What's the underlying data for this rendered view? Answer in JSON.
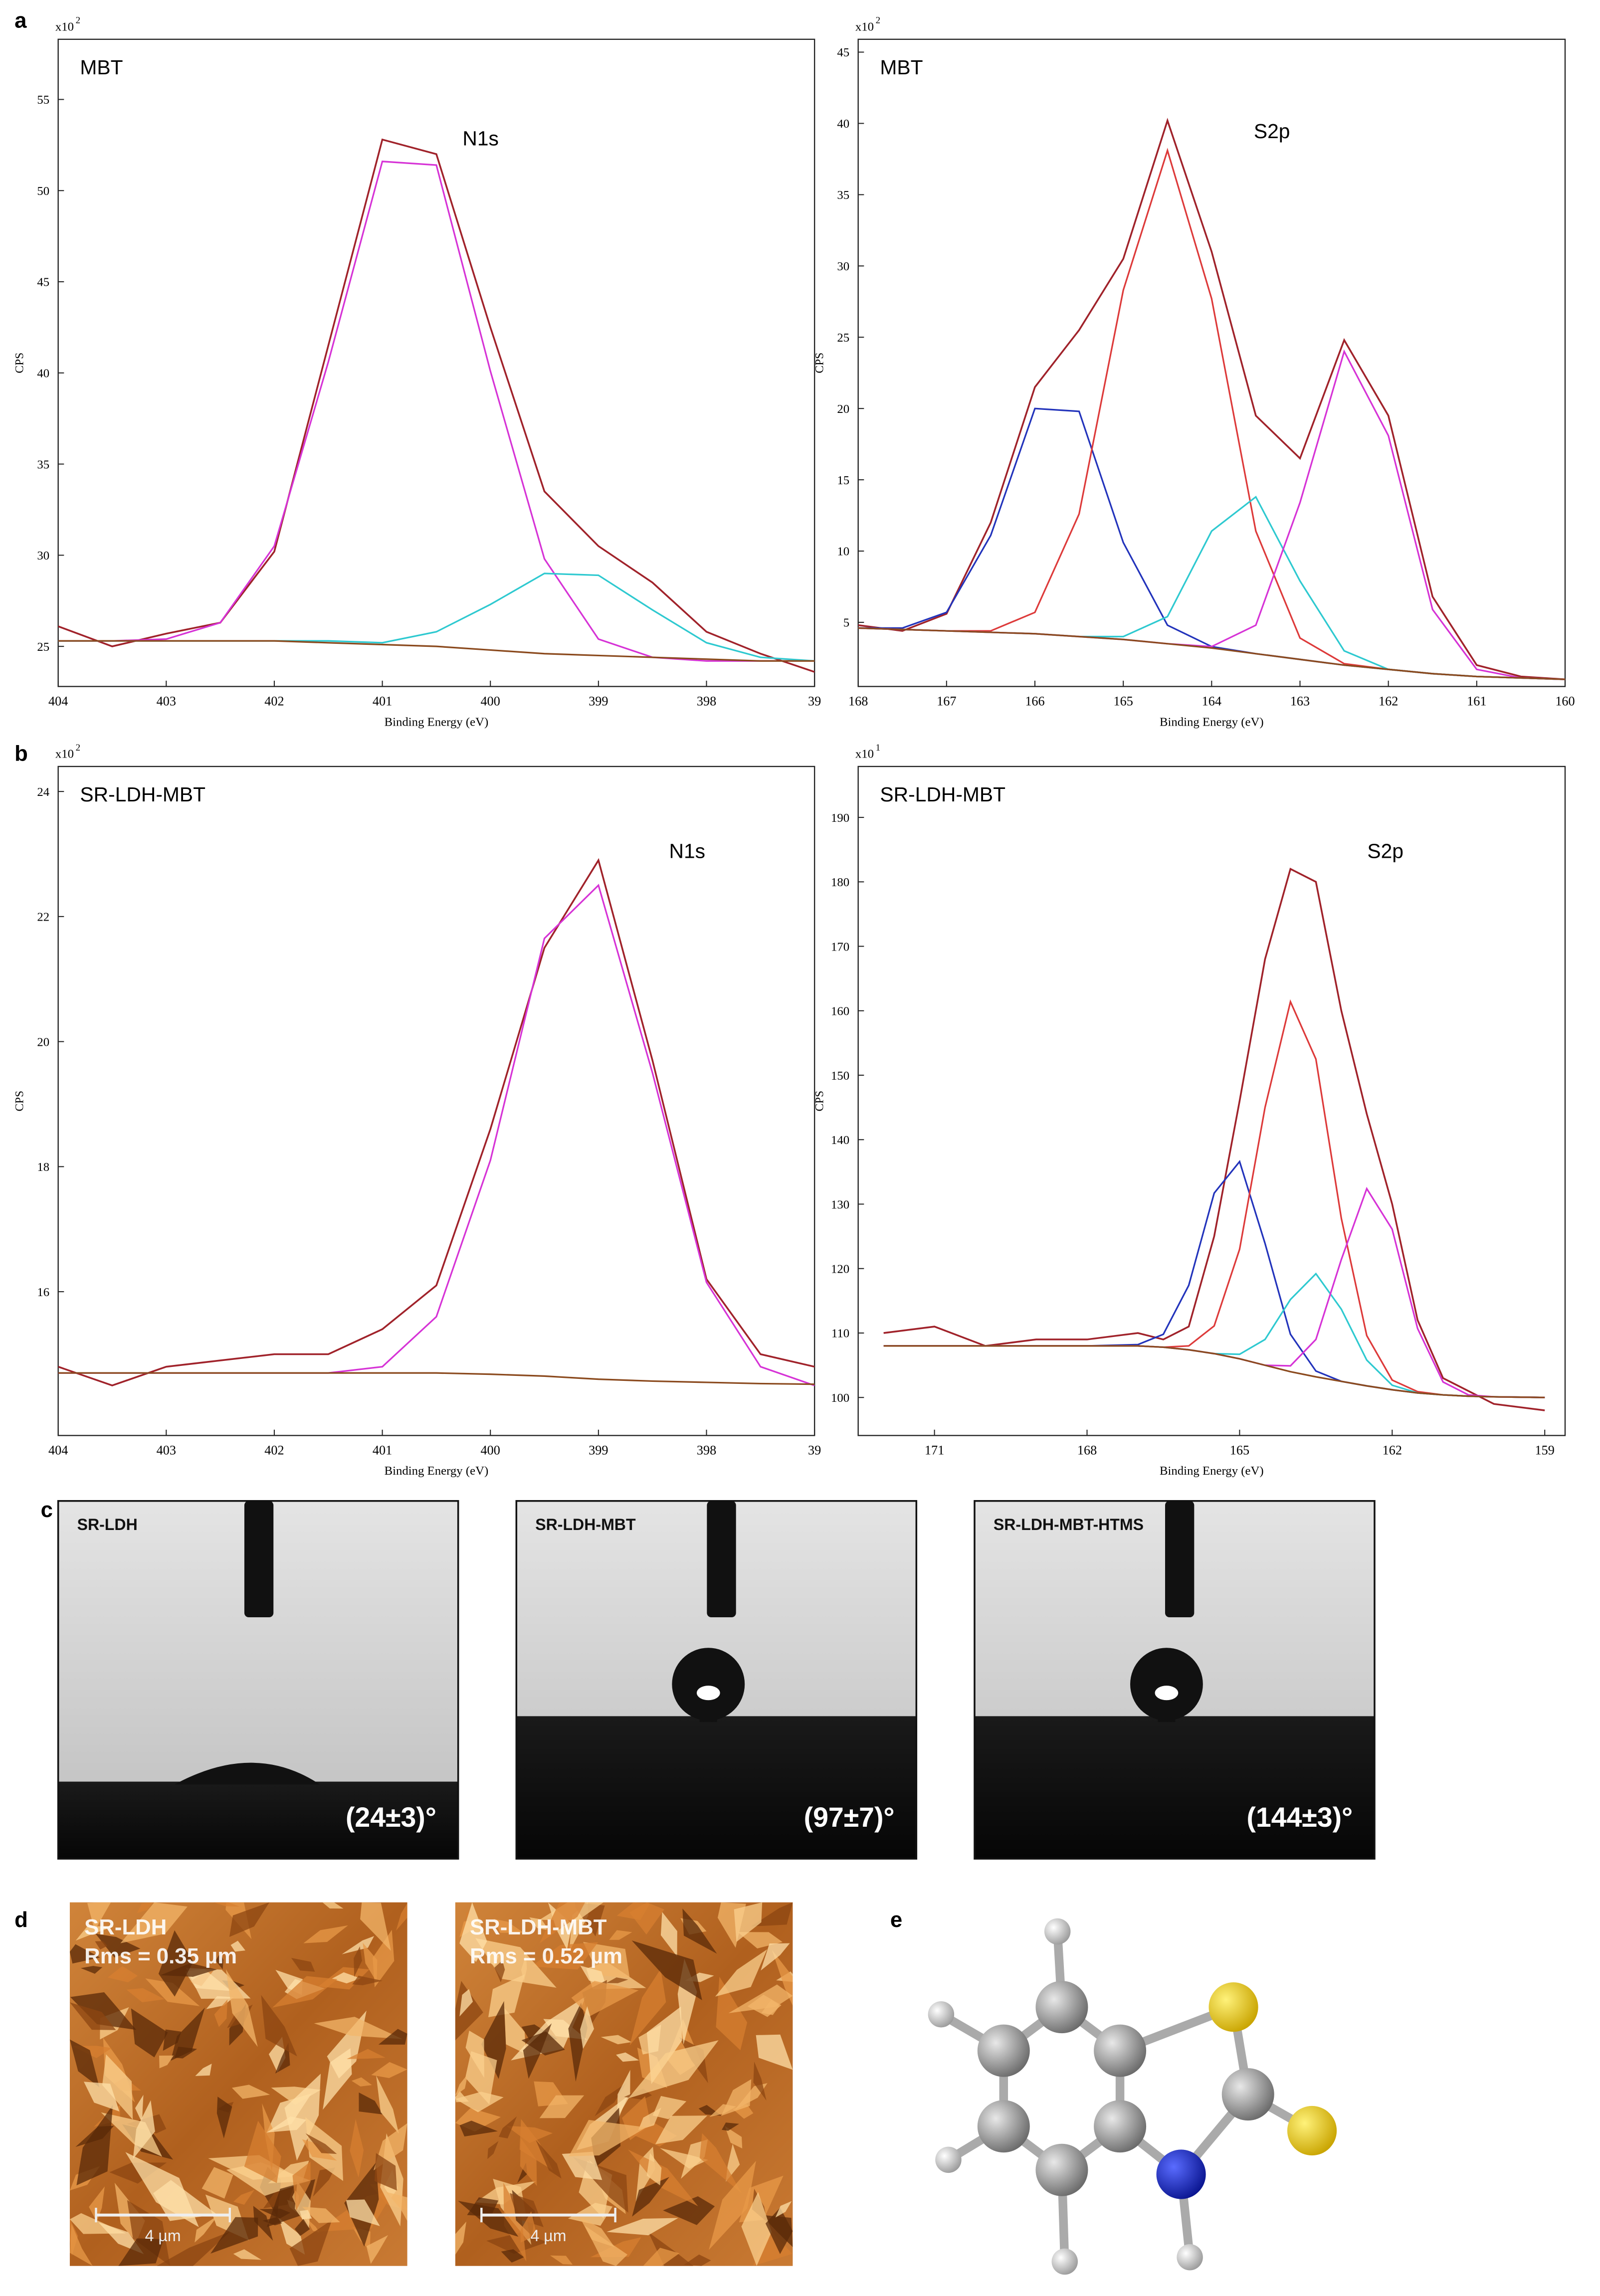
{
  "chart_data": [
    {
      "type": "line",
      "annotations": [
        "MBT",
        "N1s"
      ],
      "y_label": "CPS",
      "x_label": "Binding Energy (eV)",
      "y_scale_base": "x10",
      "y_scale_exponent": "2",
      "x": [
        404,
        403.5,
        403,
        402.5,
        402,
        401.5,
        401,
        400.5,
        400,
        399.5,
        399,
        398.5,
        398,
        397.5,
        397
      ],
      "series": [
        {
          "color": "#a0222a",
          "values": [
            26.1,
            25.0,
            25.7,
            26.3,
            30.2,
            41.5,
            52.8,
            52.0,
            42.5,
            33.5,
            30.5,
            28.5,
            25.8,
            24.6,
            23.6
          ]
        },
        {
          "color": "#d633d6",
          "values": [
            25.3,
            25.3,
            25.4,
            26.3,
            30.5,
            40.6,
            51.6,
            51.4,
            40.1,
            29.8,
            25.4,
            24.4,
            24.2,
            24.2,
            24.2
          ]
        },
        {
          "color": "#2ec9d0",
          "values": [
            25.3,
            25.3,
            25.3,
            25.3,
            25.3,
            25.3,
            25.2,
            25.8,
            27.3,
            29.0,
            28.9,
            27.0,
            25.2,
            24.4,
            24.2
          ]
        },
        {
          "color": "#8b4a1e",
          "values": [
            25.3,
            25.3,
            25.3,
            25.3,
            25.3,
            25.2,
            25.1,
            25.0,
            24.8,
            24.6,
            24.5,
            24.4,
            24.3,
            24.2,
            24.2
          ]
        }
      ],
      "xlim": [
        404,
        397
      ],
      "xticks": [
        404,
        403,
        402,
        401,
        400,
        399,
        398,
        {
          "value": 397,
          "label": "39"
        }
      ],
      "ylim": [
        22.8,
        58.3
      ],
      "yticks": [
        25,
        30,
        35,
        40,
        45,
        50,
        55
      ]
    },
    {
      "type": "line",
      "annotations": [
        "MBT",
        "S2p"
      ],
      "y_label": "CPS",
      "x_label": "Binding Energy (eV)",
      "y_scale_base": "x10",
      "y_scale_exponent": "2",
      "x": [
        168,
        167.5,
        167,
        166.5,
        166,
        165.5,
        165,
        164.5,
        164,
        163.5,
        163,
        162.5,
        162,
        161.5,
        161,
        160.5,
        160
      ],
      "series": [
        {
          "color": "#a0222a",
          "values": [
            4.8,
            4.4,
            5.6,
            12.0,
            21.5,
            25.5,
            30.5,
            40.2,
            31.0,
            19.5,
            16.5,
            24.8,
            19.5,
            6.8,
            2.0,
            1.2,
            1.0
          ]
        },
        {
          "color": "#2233bb",
          "values": [
            4.6,
            4.6,
            5.7,
            11.1,
            20.0,
            19.8,
            10.6,
            4.8,
            3.3,
            2.8,
            2.4,
            2.0,
            1.7,
            1.4,
            1.2,
            1.1,
            1.0
          ]
        },
        {
          "color": "#dd3a3a",
          "values": [
            4.6,
            4.5,
            4.4,
            4.4,
            5.7,
            12.6,
            28.3,
            38.1,
            27.7,
            11.4,
            3.9,
            2.1,
            1.7,
            1.4,
            1.2,
            1.1,
            1.0
          ]
        },
        {
          "color": "#2ec9d0",
          "values": [
            4.6,
            4.5,
            4.4,
            4.3,
            4.2,
            4.0,
            4.0,
            5.4,
            11.4,
            13.8,
            7.9,
            3.0,
            1.7,
            1.4,
            1.2,
            1.1,
            1.0
          ]
        },
        {
          "color": "#d633d6",
          "values": [
            4.6,
            4.5,
            4.4,
            4.3,
            4.2,
            4.0,
            3.8,
            3.5,
            3.3,
            4.8,
            13.4,
            24.0,
            18.1,
            5.9,
            1.7,
            1.1,
            1.0
          ]
        },
        {
          "color": "#8b4a1e",
          "values": [
            4.6,
            4.5,
            4.4,
            4.3,
            4.2,
            4.0,
            3.8,
            3.5,
            3.2,
            2.8,
            2.4,
            2.0,
            1.7,
            1.4,
            1.2,
            1.1,
            1.0
          ]
        }
      ],
      "xlim": [
        168,
        160
      ],
      "xticks": [
        168,
        167,
        166,
        165,
        164,
        163,
        162,
        161,
        160
      ],
      "ylim": [
        0.5,
        45.9
      ],
      "yticks": [
        5,
        10,
        15,
        20,
        25,
        30,
        35,
        40,
        45
      ]
    },
    {
      "type": "line",
      "annotations": [
        "SR-LDH-MBT",
        "N1s"
      ],
      "y_label": "CPS",
      "x_label": "Binding Energy (eV)",
      "y_scale_base": "x10",
      "y_scale_exponent": "2",
      "x": [
        404,
        403.5,
        403,
        402.5,
        402,
        401.5,
        401,
        400.5,
        400,
        399.5,
        399,
        398.5,
        398,
        397.5,
        397
      ],
      "series": [
        {
          "color": "#a0222a",
          "values": [
            14.8,
            14.5,
            14.8,
            14.9,
            15.0,
            15.0,
            15.4,
            16.1,
            18.6,
            21.5,
            22.9,
            19.7,
            16.2,
            15.0,
            14.8
          ]
        },
        {
          "color": "#d633d6",
          "values": [
            14.7,
            14.7,
            14.7,
            14.7,
            14.7,
            14.7,
            14.8,
            15.6,
            18.1,
            21.65,
            22.5,
            19.5,
            16.15,
            14.8,
            14.5
          ]
        },
        {
          "color": "#8b4a1e",
          "values": [
            14.7,
            14.7,
            14.7,
            14.7,
            14.7,
            14.7,
            14.7,
            14.7,
            14.68,
            14.65,
            14.6,
            14.57,
            14.55,
            14.53,
            14.52
          ]
        }
      ],
      "xlim": [
        404,
        397
      ],
      "xticks": [
        404,
        403,
        402,
        401,
        400,
        399,
        398,
        {
          "value": 397,
          "label": "39"
        }
      ],
      "ylim": [
        13.7,
        24.4
      ],
      "yticks": [
        16,
        18,
        20,
        22,
        24
      ]
    },
    {
      "type": "line",
      "annotations": [
        "SR-LDH-MBT",
        "S2p"
      ],
      "y_label": "CPS",
      "x_label": "Binding Energy (eV)",
      "y_scale_base": "x10",
      "y_scale_exponent": "1",
      "x": [
        172,
        171,
        170,
        169,
        168,
        167,
        166.5,
        166,
        165.5,
        165,
        164.5,
        164,
        163.5,
        163,
        162.5,
        162,
        161.5,
        161,
        160.5,
        160,
        159
      ],
      "series": [
        {
          "color": "#a0222a",
          "values": [
            110,
            111,
            108,
            109,
            109,
            110,
            109,
            111,
            125,
            146,
            168,
            182,
            180,
            160,
            144,
            130,
            112,
            103,
            101,
            99,
            98
          ]
        },
        {
          "color": "#2233bb",
          "values": [
            108,
            108,
            108,
            108,
            108,
            108.2,
            109.8,
            117.4,
            131.7,
            136.6,
            123.9,
            109.8,
            104.1,
            102.5,
            101.8,
            101.2,
            100.7,
            100.4,
            100.2,
            100.1,
            100
          ]
        },
        {
          "color": "#dd3a3a",
          "values": [
            108,
            108,
            108,
            108,
            108,
            108,
            107.8,
            108.0,
            111.1,
            123.0,
            145.0,
            161.4,
            152.5,
            127.8,
            109.6,
            102.7,
            100.9,
            100.4,
            100.2,
            100.1,
            100
          ]
        },
        {
          "color": "#2ec9d0",
          "values": [
            108,
            108,
            108,
            108,
            108,
            108,
            107.8,
            107.4,
            106.8,
            106.7,
            109,
            115.2,
            119.2,
            113.7,
            105.8,
            101.9,
            100.7,
            100.4,
            100.2,
            100.1,
            100
          ]
        },
        {
          "color": "#d633d6",
          "values": [
            108,
            108,
            108,
            108,
            108,
            108,
            107.8,
            107.4,
            106.8,
            106,
            105,
            104.9,
            109,
            121.4,
            132.4,
            126.1,
            110.7,
            102.4,
            100.4,
            100.1,
            100
          ]
        },
        {
          "color": "#8b4a1e",
          "values": [
            108,
            108,
            108,
            108,
            108,
            108,
            107.8,
            107.4,
            106.8,
            106,
            105,
            104,
            103.2,
            102.5,
            101.8,
            101.2,
            100.7,
            100.4,
            100.2,
            100.1,
            100
          ]
        }
      ],
      "xlim": [
        172.5,
        158.6
      ],
      "xticks": [
        171,
        168,
        165,
        162,
        159
      ],
      "ylim": [
        94.1,
        197.9
      ],
      "yticks": [
        100,
        110,
        120,
        130,
        140,
        150,
        160,
        170,
        180,
        190
      ]
    }
  ],
  "panel_labels": [
    "a",
    "b",
    "c",
    "d",
    "e"
  ],
  "contact_angle": [
    {
      "label": "SR-LDH",
      "angle": "(24±3)°"
    },
    {
      "label": "SR-LDH-MBT",
      "angle": "(97±7)°"
    },
    {
      "label": "SR-LDH-MBT-HTMS",
      "angle": "(144±3)°"
    }
  ],
  "afm": [
    {
      "label": "SR-LDH",
      "rms": "Rms = 0.35 µm",
      "scale": "4 µm"
    },
    {
      "label": "SR-LDH-MBT",
      "rms": "Rms = 0.52 µm",
      "scale": "4 µm"
    }
  ]
}
